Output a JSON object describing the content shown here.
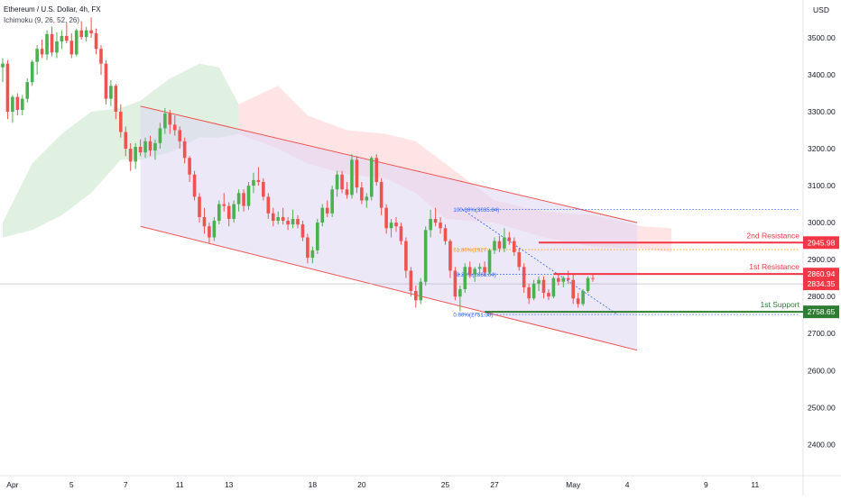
{
  "header": {
    "title": "Ethereum / U.S. Dollar, 4h, FX",
    "indicator": "Ichimoku (9, 26, 52, 26)",
    "currency": "USD"
  },
  "colors": {
    "up": "#26a69a",
    "candle_up": "#4caf50",
    "candle_down": "#ef5350",
    "channel_fill": "#ddd6f3",
    "channel_line": "#ef5350",
    "cloud_green": "#c8e6c9",
    "cloud_red": "#ffcdd2",
    "fib": "#2962ff",
    "fib_618": "#ff9800",
    "resistance": "#f23645",
    "support": "#2e7d32",
    "price_line": "#b2b5be"
  },
  "chart_data": {
    "type": "candlestick",
    "y_ticks": [
      "2400.00",
      "2500.00",
      "2600.00",
      "2700.00",
      "2800.00",
      "2900.00",
      "3000.00",
      "3100.00",
      "3200.00",
      "3300.00",
      "3400.00",
      "3500.00"
    ],
    "ylim": [
      2335,
      3590
    ],
    "x_ticks": [
      {
        "label": "Apr",
        "idx": 2
      },
      {
        "label": "5",
        "idx": 14
      },
      {
        "label": "7",
        "idx": 25
      },
      {
        "label": "11",
        "idx": 36
      },
      {
        "label": "13",
        "idx": 46
      },
      {
        "label": "18",
        "idx": 63
      },
      {
        "label": "20",
        "idx": 73
      },
      {
        "label": "25",
        "idx": 90
      },
      {
        "label": "27",
        "idx": 100
      },
      {
        "label": "May",
        "idx": 116
      },
      {
        "label": "4",
        "idx": 127
      },
      {
        "label": "9",
        "idx": 143
      },
      {
        "label": "11",
        "idx": 153
      }
    ],
    "x_count": 158,
    "candles": [
      [
        3420,
        3445,
        3380,
        3430
      ],
      [
        3430,
        3440,
        3280,
        3300
      ],
      [
        3300,
        3345,
        3270,
        3340
      ],
      [
        3340,
        3350,
        3290,
        3305
      ],
      [
        3305,
        3345,
        3290,
        3335
      ],
      [
        3335,
        3390,
        3325,
        3380
      ],
      [
        3380,
        3440,
        3370,
        3435
      ],
      [
        3435,
        3480,
        3400,
        3470
      ],
      [
        3470,
        3495,
        3445,
        3455
      ],
      [
        3455,
        3520,
        3440,
        3510
      ],
      [
        3510,
        3530,
        3450,
        3460
      ],
      [
        3460,
        3515,
        3445,
        3490
      ],
      [
        3490,
        3520,
        3470,
        3505
      ],
      [
        3505,
        3540,
        3485,
        3492
      ],
      [
        3492,
        3512,
        3445,
        3455
      ],
      [
        3455,
        3525,
        3450,
        3520
      ],
      [
        3520,
        3545,
        3495,
        3502
      ],
      [
        3502,
        3530,
        3490,
        3520
      ],
      [
        3520,
        3555,
        3500,
        3512
      ],
      [
        3512,
        3525,
        3455,
        3470
      ],
      [
        3470,
        3480,
        3400,
        3430
      ],
      [
        3430,
        3440,
        3320,
        3335
      ],
      [
        3335,
        3385,
        3315,
        3370
      ],
      [
        3370,
        3375,
        3280,
        3300
      ],
      [
        3300,
        3320,
        3230,
        3245
      ],
      [
        3245,
        3260,
        3180,
        3200
      ],
      [
        3200,
        3215,
        3140,
        3165
      ],
      [
        3165,
        3215,
        3145,
        3205
      ],
      [
        3205,
        3225,
        3180,
        3190
      ],
      [
        3190,
        3230,
        3175,
        3220
      ],
      [
        3220,
        3235,
        3180,
        3195
      ],
      [
        3195,
        3225,
        3170,
        3215
      ],
      [
        3215,
        3270,
        3200,
        3255
      ],
      [
        3255,
        3310,
        3240,
        3295
      ],
      [
        3295,
        3305,
        3240,
        3265
      ],
      [
        3265,
        3290,
        3235,
        3250
      ],
      [
        3250,
        3260,
        3200,
        3220
      ],
      [
        3220,
        3230,
        3160,
        3175
      ],
      [
        3175,
        3180,
        3110,
        3130
      ],
      [
        3130,
        3140,
        3060,
        3070
      ],
      [
        3070,
        3080,
        3000,
        3015
      ],
      [
        3015,
        3040,
        2970,
        2990
      ],
      [
        2990,
        3000,
        2945,
        2960
      ],
      [
        2960,
        3015,
        2950,
        3005
      ],
      [
        3005,
        3060,
        2995,
        3050
      ],
      [
        3050,
        3080,
        3030,
        3045
      ],
      [
        3045,
        3055,
        2990,
        3010
      ],
      [
        3010,
        3060,
        3000,
        3050
      ],
      [
        3050,
        3090,
        3030,
        3080
      ],
      [
        3080,
        3090,
        3030,
        3045
      ],
      [
        3045,
        3110,
        3035,
        3100
      ],
      [
        3100,
        3135,
        3080,
        3115
      ],
      [
        3115,
        3150,
        3100,
        3110
      ],
      [
        3110,
        3120,
        3060,
        3070
      ],
      [
        3070,
        3080,
        3010,
        3025
      ],
      [
        3025,
        3040,
        2990,
        3005
      ],
      [
        3005,
        3030,
        2995,
        3015
      ],
      [
        3015,
        3040,
        2995,
        3005
      ],
      [
        3005,
        3015,
        2980,
        2995
      ],
      [
        2995,
        3035,
        2985,
        3010
      ],
      [
        3010,
        3020,
        2985,
        2995
      ],
      [
        2995,
        3005,
        2950,
        2960
      ],
      [
        2960,
        2970,
        2890,
        2905
      ],
      [
        2905,
        2935,
        2890,
        2925
      ],
      [
        2925,
        3010,
        2915,
        3000
      ],
      [
        3000,
        3050,
        2990,
        3040
      ],
      [
        3040,
        3060,
        3015,
        3025
      ],
      [
        3025,
        3100,
        3015,
        3090
      ],
      [
        3090,
        3140,
        3070,
        3130
      ],
      [
        3130,
        3140,
        3080,
        3090
      ],
      [
        3090,
        3110,
        3065,
        3075
      ],
      [
        3075,
        3185,
        3065,
        3170
      ],
      [
        3170,
        3180,
        3080,
        3095
      ],
      [
        3095,
        3110,
        3050,
        3060
      ],
      [
        3060,
        3080,
        3040,
        3070
      ],
      [
        3070,
        3180,
        3060,
        3175
      ],
      [
        3175,
        3185,
        3100,
        3110
      ],
      [
        3110,
        3120,
        3020,
        3040
      ],
      [
        3040,
        3050,
        2970,
        2985
      ],
      [
        2985,
        3010,
        2960,
        3000
      ],
      [
        3000,
        3015,
        2975,
        2990
      ],
      [
        2990,
        3000,
        2940,
        2950
      ],
      [
        2950,
        2960,
        2850,
        2870
      ],
      [
        2870,
        2880,
        2800,
        2815
      ],
      [
        2815,
        2830,
        2770,
        2790
      ],
      [
        2790,
        2850,
        2780,
        2840
      ],
      [
        2840,
        2990,
        2830,
        2980
      ],
      [
        2980,
        3035,
        2960,
        3010
      ],
      [
        3010,
        3040,
        2990,
        3000
      ],
      [
        3000,
        3015,
        2970,
        2985
      ],
      [
        2985,
        2995,
        2940,
        2950
      ],
      [
        2950,
        2955,
        2850,
        2870
      ],
      [
        2870,
        2880,
        2790,
        2800
      ],
      [
        2800,
        2830,
        2760,
        2820
      ],
      [
        2820,
        2890,
        2810,
        2880
      ],
      [
        2880,
        2895,
        2850,
        2860
      ],
      [
        2860,
        2880,
        2840,
        2875
      ],
      [
        2875,
        2890,
        2860,
        2880
      ],
      [
        2880,
        2895,
        2855,
        2865
      ],
      [
        2865,
        2930,
        2860,
        2925
      ],
      [
        2925,
        2960,
        2915,
        2950
      ],
      [
        2950,
        2965,
        2920,
        2930
      ],
      [
        2930,
        2985,
        2920,
        2960
      ],
      [
        2960,
        2975,
        2940,
        2950
      ],
      [
        2950,
        2960,
        2910,
        2920
      ],
      [
        2920,
        2930,
        2870,
        2880
      ],
      [
        2880,
        2890,
        2810,
        2825
      ],
      [
        2825,
        2835,
        2780,
        2795
      ],
      [
        2795,
        2845,
        2790,
        2835
      ],
      [
        2835,
        2855,
        2815,
        2845
      ],
      [
        2845,
        2855,
        2795,
        2810
      ],
      [
        2810,
        2820,
        2790,
        2800
      ],
      [
        2800,
        2855,
        2795,
        2850
      ],
      [
        2850,
        2860,
        2830,
        2840
      ],
      [
        2840,
        2855,
        2825,
        2850
      ],
      [
        2850,
        2870,
        2835,
        2845
      ],
      [
        2845,
        2860,
        2780,
        2795
      ],
      [
        2795,
        2810,
        2770,
        2780
      ],
      [
        2780,
        2820,
        2775,
        2815
      ],
      [
        2815,
        2855,
        2810,
        2850
      ],
      [
        2850,
        2860,
        2840,
        2848
      ]
    ],
    "candle_start_idx": 0,
    "channel": {
      "upper": [
        [
          28,
          3315
        ],
        [
          129,
          3000
        ]
      ],
      "lower": [
        [
          28,
          2990
        ],
        [
          129,
          2655
        ]
      ],
      "fill_right_idx": 129
    },
    "ichimoku_green": {
      "x": [
        0,
        6,
        12,
        18,
        24,
        28,
        34,
        40,
        44,
        48
      ],
      "top": [
        3000,
        3160,
        3240,
        3300,
        3310,
        3330,
        3390,
        3430,
        3420,
        3320
      ],
      "bottom": [
        2960,
        2980,
        3020,
        3080,
        3170,
        3170,
        3190,
        3230,
        3230,
        3240
      ]
    },
    "ichimoku_red": {
      "x": [
        48,
        56,
        62,
        70,
        78,
        84,
        90,
        100,
        110,
        120,
        130,
        136
      ],
      "top": [
        3320,
        3370,
        3290,
        3250,
        3240,
        3220,
        3160,
        3060,
        3030,
        3020,
        2990,
        2985
      ],
      "bottom": [
        3240,
        3200,
        3160,
        3130,
        3120,
        3080,
        3010,
        3000,
        2960,
        2935,
        2930,
        2920
      ]
    },
    "fib_levels": [
      {
        "label": "100.00%(3035.84)",
        "value": 3035.84
      },
      {
        "label": "61.80%(2927",
        "value": 2927
      },
      {
        "label": "38.20%(2860.04)",
        "value": 2860.04
      },
      {
        "label": "0.00%(2751.38)",
        "value": 2751.38
      }
    ],
    "fib_start_idx": 92,
    "lines": [
      {
        "name": "2nd Resistance",
        "value": 2945.98,
        "label": "2945.98",
        "color": "#f23645",
        "start_idx": 109
      },
      {
        "name": "1st Resistance",
        "value": 2860.94,
        "label": "2860.94",
        "color": "#f23645",
        "start_idx": 112
      },
      {
        "name": "1st Support",
        "value": 2758.65,
        "label": "2758.65",
        "color": "#2e7d32",
        "start_idx": 98
      }
    ],
    "current_price": {
      "value": 2834.35,
      "label": "2834.35"
    }
  }
}
